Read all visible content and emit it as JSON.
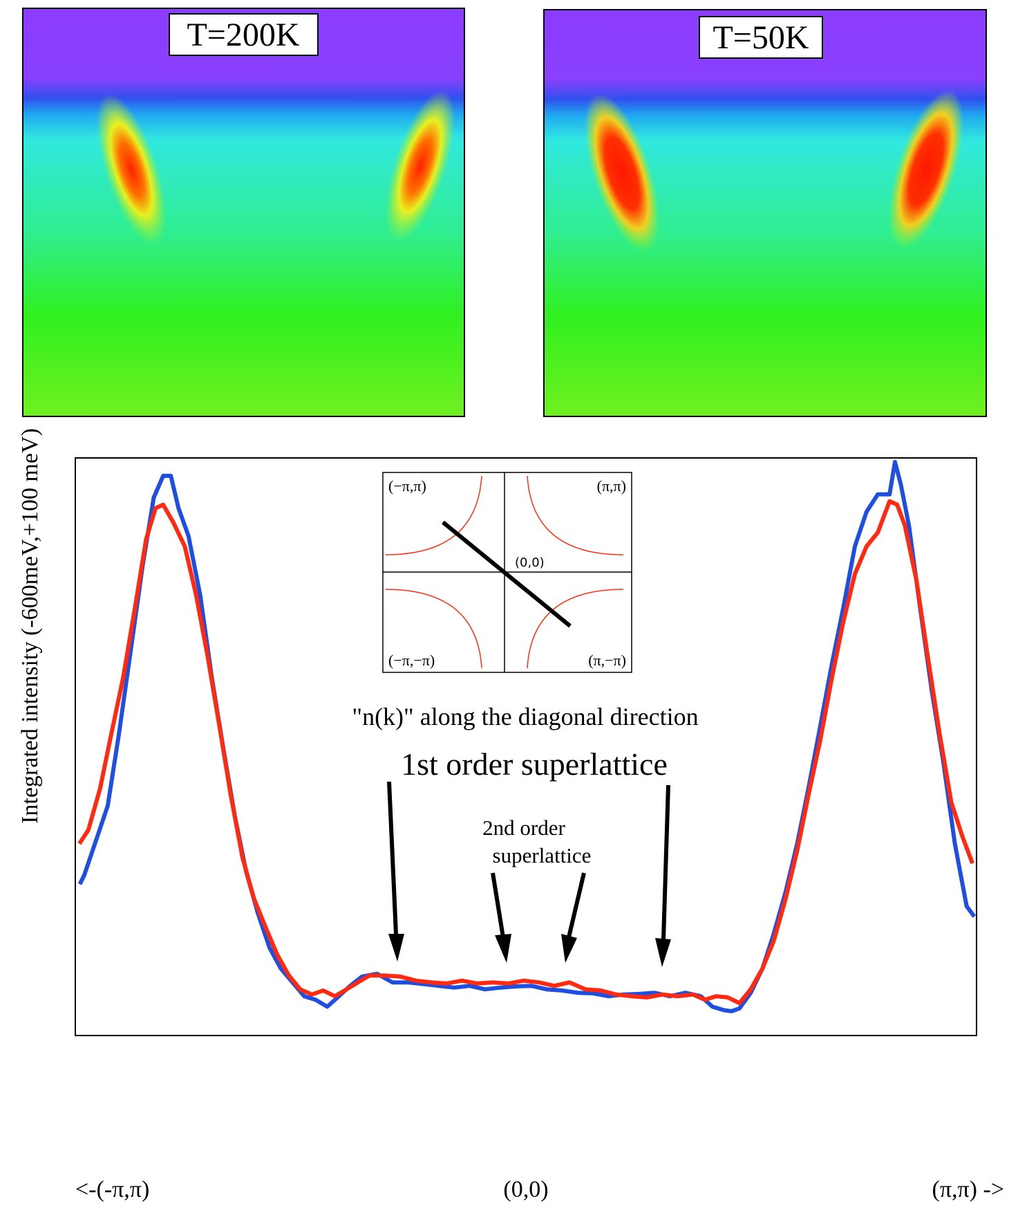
{
  "images": [
    {
      "label": "T=200K"
    },
    {
      "label": "T=50K"
    }
  ],
  "chart_data": {
    "type": "line",
    "y_label": "Integrated intensity (-600meV,+100 meV)",
    "annotations": [
      "\"n(k)\" along the diagonal direction",
      "1st order superlattice",
      "2nd order",
      "superlattice"
    ],
    "inset": {
      "corner_labels": [
        "(−π,π)",
        "(π,π)",
        "(−π,−π)",
        "(π,−π)"
      ],
      "center_label": "(0,0)"
    },
    "xlim": [
      -1,
      1
    ],
    "xticks": [
      {
        "value": -1,
        "label": "<-(-π,π)"
      },
      {
        "value": 0,
        "label": "(0,0)"
      },
      {
        "value": 1,
        "label": "(π,π) ->"
      }
    ],
    "ylim": [
      0,
      100
    ],
    "series": [
      {
        "color": "#1f4fe0",
        "x": [
          -0.99,
          -0.98,
          -0.954,
          -0.928,
          -0.903,
          -0.877,
          -0.851,
          -0.826,
          -0.805,
          -0.788,
          -0.771,
          -0.749,
          -0.723,
          -0.697,
          -0.672,
          -0.646,
          -0.621,
          -0.595,
          -0.569,
          -0.544,
          -0.518,
          -0.492,
          -0.467,
          -0.441,
          -0.415,
          -0.39,
          -0.364,
          -0.33,
          -0.296,
          -0.262,
          -0.227,
          -0.193,
          -0.159,
          -0.125,
          -0.091,
          -0.056,
          -0.022,
          0.012,
          0.046,
          0.08,
          0.115,
          0.149,
          0.183,
          0.217,
          0.251,
          0.285,
          0.32,
          0.354,
          0.388,
          0.414,
          0.439,
          0.456,
          0.474,
          0.499,
          0.525,
          0.55,
          0.576,
          0.602,
          0.627,
          0.653,
          0.679,
          0.704,
          0.73,
          0.756,
          0.781,
          0.807,
          0.819,
          0.832,
          0.85,
          0.875,
          0.901,
          0.926,
          0.952,
          0.978,
          0.995
        ],
        "values": [
          26.2,
          27.8,
          33.8,
          39.8,
          52.3,
          66.7,
          81.1,
          93.1,
          96.9,
          96.9,
          91.3,
          86.5,
          76.3,
          61.9,
          49.9,
          38.0,
          28.4,
          21.2,
          15.2,
          11.6,
          9.2,
          6.8,
          6.2,
          5.0,
          6.8,
          8.6,
          10.2,
          10.7,
          9.2,
          9.2,
          8.9,
          8.6,
          8.3,
          8.6,
          8.0,
          8.3,
          8.5,
          8.6,
          8.0,
          7.8,
          7.4,
          7.3,
          6.8,
          7.1,
          7.2,
          7.4,
          6.8,
          7.4,
          6.8,
          5.0,
          4.4,
          4.2,
          4.7,
          7.4,
          11.6,
          17.6,
          24.8,
          33.2,
          42.8,
          53.5,
          64.3,
          73.9,
          84.7,
          90.7,
          93.7,
          93.7,
          99.3,
          95.4,
          88.3,
          73.9,
          59.5,
          47.5,
          33.2,
          22.4,
          20.6
        ]
      },
      {
        "color": "#ff2a10",
        "x": [
          -0.991,
          -0.971,
          -0.945,
          -0.92,
          -0.894,
          -0.868,
          -0.843,
          -0.822,
          -0.805,
          -0.783,
          -0.757,
          -0.732,
          -0.706,
          -0.68,
          -0.655,
          -0.629,
          -0.603,
          -0.578,
          -0.552,
          -0.526,
          -0.501,
          -0.475,
          -0.45,
          -0.424,
          -0.398,
          -0.373,
          -0.347,
          -0.313,
          -0.279,
          -0.244,
          -0.21,
          -0.176,
          -0.142,
          -0.108,
          -0.074,
          -0.039,
          -0.005,
          0.029,
          0.063,
          0.097,
          0.132,
          0.166,
          0.2,
          0.234,
          0.268,
          0.303,
          0.337,
          0.371,
          0.397,
          0.422,
          0.448,
          0.474,
          0.499,
          0.525,
          0.55,
          0.576,
          0.602,
          0.627,
          0.653,
          0.679,
          0.704,
          0.73,
          0.756,
          0.781,
          0.807,
          0.824,
          0.841,
          0.867,
          0.892,
          0.918,
          0.944,
          0.969,
          0.991
        ],
        "values": [
          33.2,
          35.6,
          42.8,
          52.3,
          61.9,
          73.9,
          85.9,
          91.3,
          91.9,
          88.9,
          84.7,
          76.3,
          65.5,
          53.5,
          41.6,
          30.8,
          23.6,
          18.8,
          14.0,
          10.4,
          8.0,
          7.1,
          7.8,
          6.8,
          8.0,
          9.2,
          10.4,
          10.4,
          10.2,
          9.5,
          9.2,
          9.0,
          9.5,
          9.0,
          9.2,
          9.0,
          9.5,
          9.2,
          8.6,
          9.2,
          8.0,
          7.8,
          7.1,
          6.8,
          6.6,
          7.1,
          6.8,
          7.1,
          6.2,
          6.8,
          6.6,
          5.6,
          8.0,
          11.6,
          16.4,
          23.6,
          32.0,
          41.6,
          51.1,
          61.9,
          71.5,
          79.9,
          84.7,
          87.1,
          92.5,
          91.9,
          88.3,
          78.7,
          65.5,
          52.3,
          40.4,
          34.4,
          29.8
        ]
      }
    ]
  }
}
